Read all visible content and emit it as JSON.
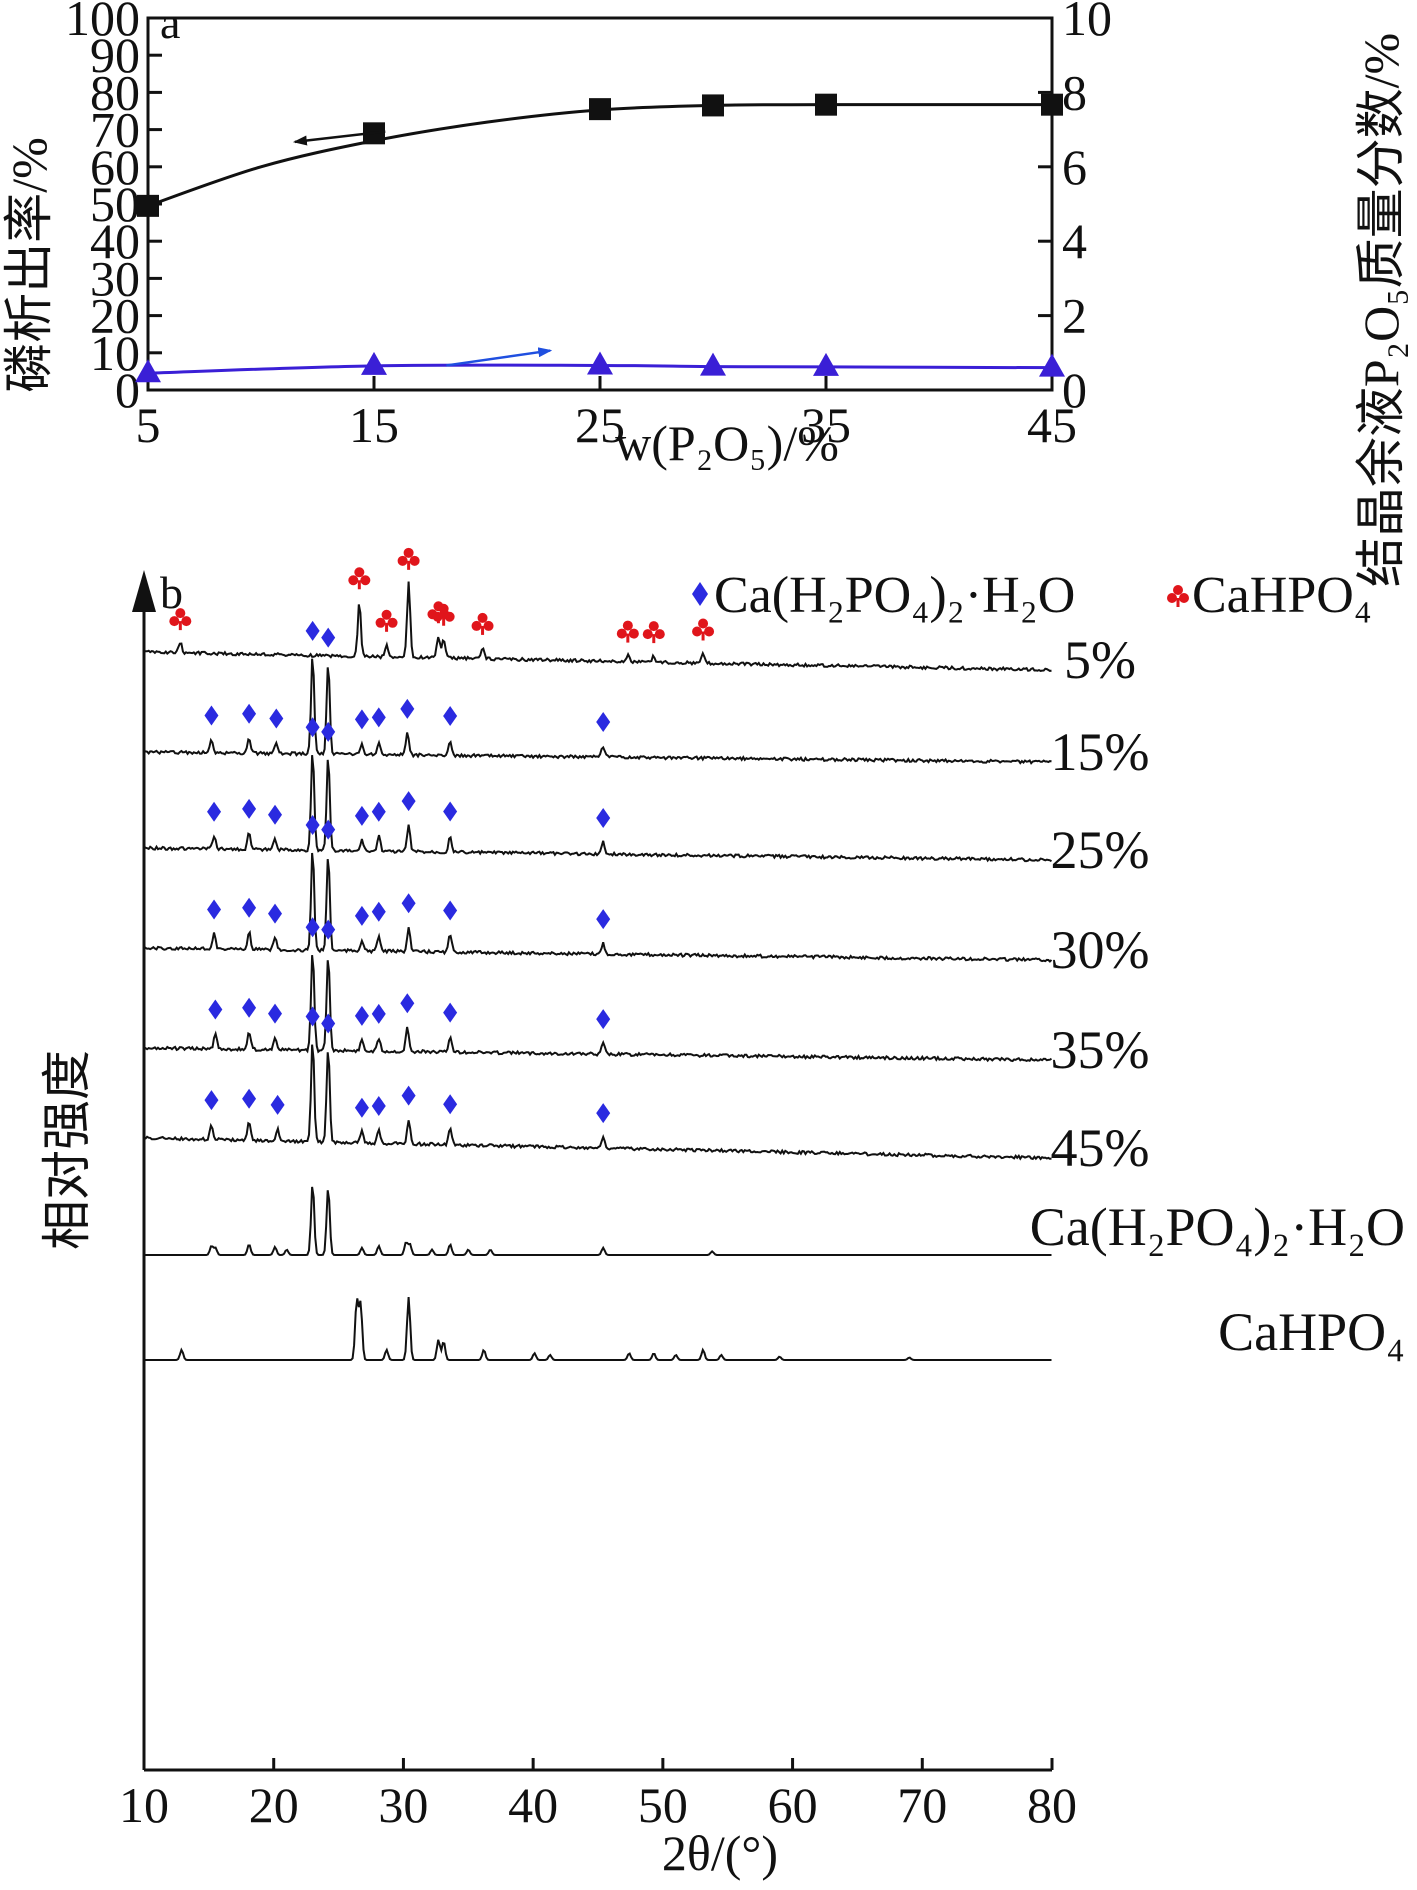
{
  "chart_data": [
    {
      "type": "line",
      "panel_label": "a",
      "xlabel": "w(P₂O₅)/%",
      "ylabel_left": "磷析出率/%",
      "ylabel_right": "结晶余液P₂O₅质量分数/%",
      "x_ticks": [
        "5",
        "15",
        "25",
        "35",
        "45"
      ],
      "y_left_ticks": [
        "0",
        "10",
        "20",
        "30",
        "40",
        "50",
        "60",
        "70",
        "80",
        "90",
        "100"
      ],
      "y_right_ticks": [
        "0",
        "2",
        "4",
        "6",
        "8",
        "10"
      ],
      "xlim": [
        5,
        45
      ],
      "ylim_left": [
        0,
        100
      ],
      "ylim_right": [
        0,
        10
      ],
      "series": [
        {
          "axis": "left",
          "marker": "square",
          "color": "#111111",
          "x": [
            5,
            15,
            25,
            30,
            35,
            45
          ],
          "values": [
            49.5,
            69,
            75.5,
            76.5,
            76.7,
            76.7
          ]
        },
        {
          "axis": "right",
          "marker": "triangle",
          "color": "#3a1fd6",
          "x": [
            5,
            15,
            25,
            30,
            35,
            45
          ],
          "values": [
            0.45,
            0.65,
            0.66,
            0.63,
            0.62,
            0.6
          ]
        }
      ],
      "arrow_left_color": "#111111",
      "arrow_right_color": "#1f4fe0"
    },
    {
      "type": "line",
      "panel_label": "b",
      "xlabel": "2θ/(°)",
      "ylabel": "相对强度",
      "x_ticks": [
        "10",
        "20",
        "30",
        "40",
        "50",
        "60",
        "70",
        "80"
      ],
      "xlim": [
        10,
        80
      ],
      "legend": [
        {
          "symbol": "diamond",
          "color": "#2a2ae0",
          "label": "Ca(H₂PO₄)₂·H₂O"
        },
        {
          "symbol": "club",
          "color": "#e0151b",
          "label": "CaHPO₄"
        }
      ],
      "series": [
        {
          "name": "5%",
          "phase": "CaHPO4",
          "peaks": [
            [
              12.8,
              8
            ],
            [
              26.6,
              45
            ],
            [
              28.7,
              10
            ],
            [
              30.4,
              62
            ],
            [
              32.7,
              18
            ],
            [
              33.1,
              16
            ],
            [
              36.1,
              9
            ],
            [
              47.3,
              5
            ],
            [
              49.3,
              5
            ],
            [
              53.1,
              8
            ]
          ]
        },
        {
          "name": "15%",
          "phase": "Ca(H2PO4)2·H2O",
          "peaks": [
            [
              15.2,
              12
            ],
            [
              18.1,
              14
            ],
            [
              20.2,
              10
            ],
            [
              23.0,
              90
            ],
            [
              24.2,
              84
            ],
            [
              26.8,
              10
            ],
            [
              28.1,
              12
            ],
            [
              30.3,
              20
            ],
            [
              33.6,
              14
            ],
            [
              45.4,
              10
            ]
          ]
        },
        {
          "name": "25%",
          "phase": "Ca(H2PO4)2·H2O",
          "peaks": [
            [
              15.4,
              12
            ],
            [
              18.1,
              15
            ],
            [
              20.1,
              10
            ],
            [
              23.0,
              90
            ],
            [
              24.2,
              86
            ],
            [
              26.8,
              10
            ],
            [
              28.1,
              14
            ],
            [
              30.4,
              24
            ],
            [
              33.6,
              15
            ],
            [
              45.4,
              11
            ]
          ]
        },
        {
          "name": "30%",
          "phase": "Ca(H2PO4)2·H2O",
          "peaks": [
            [
              15.4,
              14
            ],
            [
              18.1,
              16
            ],
            [
              20.1,
              11
            ],
            [
              23.0,
              92
            ],
            [
              24.2,
              88
            ],
            [
              26.8,
              10
            ],
            [
              28.1,
              14
            ],
            [
              30.4,
              22
            ],
            [
              33.6,
              16
            ],
            [
              45.4,
              10
            ]
          ]
        },
        {
          "name": "35%",
          "phase": "Ca(H2PO4)2·H2O",
          "peaks": [
            [
              15.5,
              14
            ],
            [
              18.1,
              16
            ],
            [
              20.1,
              11
            ],
            [
              23.0,
              90
            ],
            [
              24.2,
              88
            ],
            [
              26.8,
              10
            ],
            [
              28.1,
              12
            ],
            [
              30.3,
              22
            ],
            [
              33.6,
              14
            ],
            [
              45.4,
              10
            ]
          ]
        },
        {
          "name": "45%",
          "phase": "Ca(H2PO4)2·H2O",
          "peaks": [
            [
              15.2,
              14
            ],
            [
              18.1,
              16
            ],
            [
              20.3,
              11
            ],
            [
              23.0,
              92
            ],
            [
              24.2,
              86
            ],
            [
              26.8,
              10
            ],
            [
              28.1,
              12
            ],
            [
              30.4,
              22
            ],
            [
              33.6,
              15
            ],
            [
              45.4,
              10
            ]
          ]
        },
        {
          "name": "Ca(H₂PO₄)₂·H₂O",
          "phase": "Ca(H2PO4)2·H2O",
          "peaks": [
            [
              15.2,
              10
            ],
            [
              15.5,
              8
            ],
            [
              18.1,
              12
            ],
            [
              20.1,
              9
            ],
            [
              21.0,
              6
            ],
            [
              23.0,
              80
            ],
            [
              24.2,
              76
            ],
            [
              26.8,
              8
            ],
            [
              28.1,
              10
            ],
            [
              30.2,
              14
            ],
            [
              30.5,
              12
            ],
            [
              32.2,
              6
            ],
            [
              33.6,
              12
            ],
            [
              35.0,
              6
            ],
            [
              36.7,
              6
            ],
            [
              45.4,
              8
            ],
            [
              53.8,
              4
            ]
          ]
        },
        {
          "name": "CaHPO₄",
          "phase": "CaHPO4",
          "peaks": [
            [
              12.9,
              12
            ],
            [
              26.4,
              70
            ],
            [
              26.7,
              66
            ],
            [
              28.7,
              12
            ],
            [
              30.4,
              74
            ],
            [
              32.7,
              24
            ],
            [
              33.1,
              22
            ],
            [
              36.2,
              12
            ],
            [
              40.1,
              8
            ],
            [
              41.3,
              6
            ],
            [
              47.4,
              8
            ],
            [
              49.3,
              8
            ],
            [
              51.0,
              6
            ],
            [
              53.1,
              12
            ],
            [
              54.5,
              6
            ],
            [
              59.0,
              4
            ],
            [
              69.0,
              3
            ]
          ]
        }
      ]
    }
  ]
}
